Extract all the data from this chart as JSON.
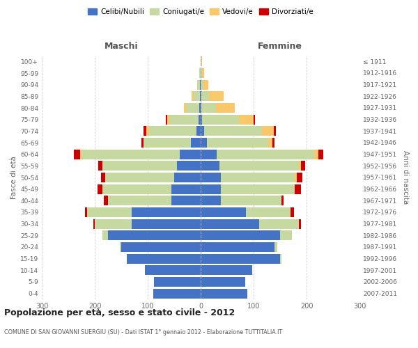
{
  "age_groups": [
    "0-4",
    "5-9",
    "10-14",
    "15-19",
    "20-24",
    "25-29",
    "30-34",
    "35-39",
    "40-44",
    "45-49",
    "50-54",
    "55-59",
    "60-64",
    "65-69",
    "70-74",
    "75-79",
    "80-84",
    "85-89",
    "90-94",
    "95-99",
    "100+"
  ],
  "birth_years": [
    "2007-2011",
    "2002-2006",
    "1997-2001",
    "1992-1996",
    "1987-1991",
    "1982-1986",
    "1977-1981",
    "1972-1976",
    "1967-1971",
    "1962-1966",
    "1957-1961",
    "1952-1956",
    "1947-1951",
    "1942-1946",
    "1937-1941",
    "1932-1936",
    "1927-1931",
    "1922-1926",
    "1917-1921",
    "1912-1916",
    "≤ 1911"
  ],
  "male_celibi": [
    90,
    88,
    105,
    140,
    150,
    175,
    130,
    130,
    55,
    55,
    50,
    45,
    40,
    18,
    8,
    4,
    2,
    1,
    1,
    0,
    0
  ],
  "male_coniugati": [
    0,
    0,
    0,
    0,
    3,
    10,
    70,
    85,
    120,
    130,
    130,
    140,
    185,
    90,
    90,
    55,
    25,
    12,
    4,
    2,
    0
  ],
  "male_vedovi": [
    0,
    0,
    0,
    0,
    0,
    0,
    0,
    0,
    0,
    0,
    0,
    0,
    3,
    0,
    4,
    4,
    4,
    4,
    2,
    1,
    0
  ],
  "male_divorziati": [
    0,
    0,
    0,
    0,
    0,
    0,
    3,
    4,
    8,
    10,
    8,
    8,
    12,
    4,
    6,
    3,
    1,
    0,
    0,
    0,
    0
  ],
  "female_celibi": [
    88,
    84,
    98,
    150,
    140,
    150,
    110,
    85,
    38,
    38,
    38,
    35,
    30,
    12,
    6,
    2,
    1,
    1,
    0,
    0,
    0
  ],
  "female_coniugati": [
    0,
    0,
    0,
    2,
    5,
    22,
    75,
    85,
    115,
    140,
    140,
    150,
    185,
    115,
    110,
    70,
    28,
    15,
    5,
    2,
    0
  ],
  "female_vedovi": [
    0,
    0,
    0,
    0,
    0,
    0,
    0,
    0,
    0,
    0,
    4,
    4,
    8,
    8,
    22,
    28,
    35,
    28,
    10,
    4,
    2
  ],
  "female_divorziati": [
    0,
    0,
    0,
    0,
    0,
    0,
    4,
    6,
    4,
    12,
    10,
    8,
    8,
    4,
    4,
    2,
    0,
    0,
    0,
    0,
    0
  ],
  "colors": {
    "celibi": "#4472c4",
    "coniugati": "#c5d9a0",
    "vedovi": "#f9c86a",
    "divorziati": "#cc0000"
  },
  "title": "Popolazione per età, sesso e stato civile - 2012",
  "subtitle": "COMUNE DI SAN GIOVANNI SUERGIU (SU) - Dati ISTAT 1° gennaio 2012 - Elaborazione TUTTITALIA.IT",
  "xlabel_left": "Maschi",
  "xlabel_right": "Femmine",
  "ylabel_left": "Fasce di età",
  "ylabel_right": "Anni di nascita",
  "legend_labels": [
    "Celibi/Nubili",
    "Coniugati/e",
    "Vedovi/e",
    "Divorziati/e"
  ],
  "xlim": 300,
  "background_color": "#ffffff",
  "bar_height": 0.85
}
